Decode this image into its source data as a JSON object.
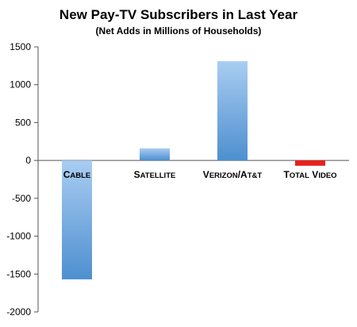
{
  "chart_data": {
    "type": "bar",
    "title": "New Pay-TV Subscribers in Last Year",
    "subtitle": "(Net Adds in Millions of Households)",
    "categories": [
      "Cable",
      "Satellite",
      "Verizon/AT&T",
      "Total Video"
    ],
    "values": [
      -1570,
      160,
      1310,
      -70
    ],
    "ylim": [
      -2000,
      1500
    ],
    "yticks": [
      "1500",
      "1000",
      "500",
      "0",
      "-500",
      "-1000",
      "-1500",
      "-2000"
    ],
    "colors": {
      "gradient_top": "#a9cdf2",
      "gradient_bottom": "#4e8fcf",
      "negative_total": "#e8201a",
      "axis": "#555555"
    },
    "grid": false,
    "legend": "none"
  }
}
